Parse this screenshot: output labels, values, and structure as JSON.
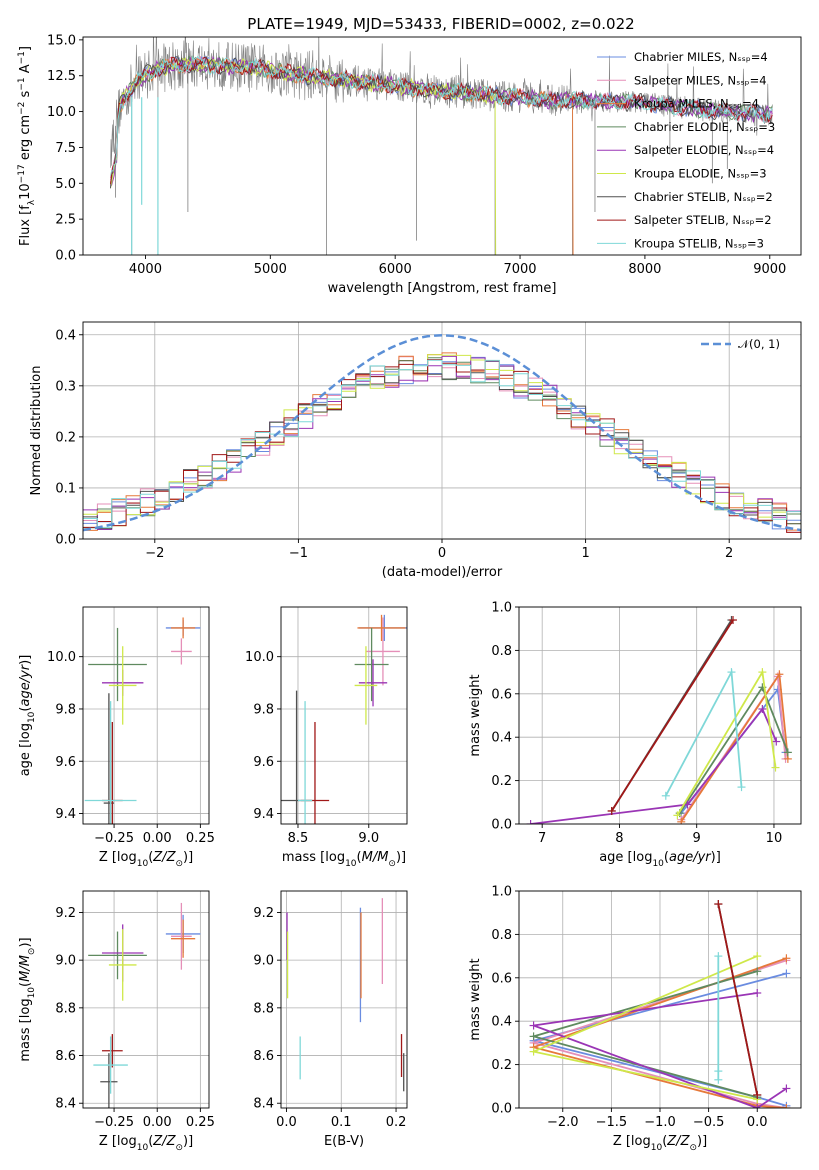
{
  "figure": {
    "title": "PLATE=1949, MJD=53433, FIBERID=0002, z=0.022"
  },
  "chart_data": [
    {
      "type": "line",
      "id": "spectrum",
      "xlabel": "wavelength [Angstrom, rest frame]",
      "ylabel": "Flux [f_λ10^-17 erg cm^-2 s^-1 A^-1]",
      "xlim": [
        3500,
        9250
      ],
      "ylim": [
        0,
        15.2
      ],
      "xticks": [
        4000,
        5000,
        6000,
        7000,
        8000,
        9000
      ],
      "yticks": [
        0.0,
        2.5,
        5.0,
        7.5,
        10.0,
        12.5,
        15.0
      ],
      "ytick_labels": [
        "0.0",
        "2.5",
        "5.0",
        "7.5",
        "10.0",
        "12.5",
        "15.0"
      ],
      "legend_position": "upper-right",
      "observed_color": "#808080",
      "continuum": {
        "x": [
          3720,
          3800,
          3900,
          4000,
          4100,
          4200,
          4400,
          4600,
          4800,
          5000,
          5200,
          5400,
          5600,
          5800,
          6000,
          6200,
          6400,
          6600,
          6800,
          7000,
          7200,
          7400,
          7600,
          7800,
          8000,
          8200,
          8400,
          8600,
          8800,
          9000
        ],
        "y": [
          7.5,
          10.5,
          11.8,
          12.6,
          13.0,
          13.2,
          13.3,
          13.2,
          13.1,
          12.9,
          12.6,
          12.4,
          12.2,
          12.0,
          11.8,
          11.6,
          11.4,
          11.3,
          11.1,
          11.0,
          10.8,
          10.8,
          10.7,
          10.7,
          10.6,
          10.4,
          10.2,
          10.0,
          9.9,
          9.8
        ]
      },
      "series": [
        {
          "name": "Chabrier MILES, N_SSP=4",
          "color": "#6a8ce0"
        },
        {
          "name": "Salpeter MILES, N_SSP=4",
          "color": "#e58fb8"
        },
        {
          "name": "Kroupa MILES, N_SSP=4",
          "color": "#e6793a"
        },
        {
          "name": "Chabrier ELODIE, N_SSP=3",
          "color": "#5f8a5f"
        },
        {
          "name": "Salpeter ELODIE, N_SSP=4",
          "color": "#9a35b5"
        },
        {
          "name": "Kroupa ELODIE, N_SSP=3",
          "color": "#cfe84a"
        },
        {
          "name": "Chabrier STELIB, N_SSP=2",
          "color": "#505050"
        },
        {
          "name": "Salpeter STELIB, N_SSP=2",
          "color": "#a01818"
        },
        {
          "name": "Kroupa STELIB, N_SSP=3",
          "color": "#7fd8d8"
        }
      ]
    },
    {
      "type": "histogram",
      "id": "residuals",
      "xlabel": "(data-model)/error",
      "ylabel": "Normed distribution",
      "xlim": [
        -2.5,
        2.5
      ],
      "ylim": [
        0,
        0.425
      ],
      "xticks": [
        -2,
        -1,
        0,
        1,
        2
      ],
      "xtick_labels": [
        "−2",
        "−1",
        "0",
        "1",
        "2"
      ],
      "yticks": [
        0.0,
        0.1,
        0.2,
        0.3,
        0.4
      ],
      "ytick_labels": [
        "0.0",
        "0.1",
        "0.2",
        "0.3",
        "0.4"
      ],
      "bin_width": 0.1,
      "legend": "𝒩(0, 1)",
      "curve_color": "#5b8fd6",
      "legend_position": "upper-right"
    },
    {
      "type": "scatter",
      "id": "age-vs-Z",
      "xlabel": "Z [log10(Z/Z⊙)]",
      "ylabel": "age [log10(age/yr)]",
      "xlim": [
        -0.43,
        0.3
      ],
      "ylim": [
        9.36,
        10.19
      ],
      "xticks": [
        -0.25,
        0.0,
        0.25
      ],
      "xtick_labels": [
        "−0.25",
        "0.00",
        "0.25"
      ],
      "yticks": [
        9.4,
        9.6,
        9.8,
        10.0
      ],
      "ytick_labels": [
        "9.4",
        "9.6",
        "9.8",
        "10.0"
      ],
      "points": [
        {
          "x": 0.15,
          "y": 10.11,
          "xerr": 0.1,
          "yerr": 0.03,
          "color": "#6a8ce0"
        },
        {
          "x": 0.14,
          "y": 10.02,
          "xerr": 0.06,
          "yerr": 0.05,
          "color": "#e58fb8"
        },
        {
          "x": 0.15,
          "y": 10.11,
          "xerr": 0.07,
          "yerr": 0.04,
          "color": "#e6793a"
        },
        {
          "x": -0.23,
          "y": 9.97,
          "xerr": 0.17,
          "yerr": 0.14,
          "color": "#5f8a5f"
        },
        {
          "x": -0.2,
          "y": 9.9,
          "xerr": 0.12,
          "yerr": 0.05,
          "color": "#9a35b5"
        },
        {
          "x": -0.2,
          "y": 9.89,
          "xerr": 0.08,
          "yerr": 0.15,
          "color": "#cfe84a"
        },
        {
          "x": -0.28,
          "y": 9.44,
          "xerr": 0.03,
          "yerr": 0.42,
          "color": "#505050"
        },
        {
          "x": -0.26,
          "y": 9.45,
          "xerr": 0.06,
          "yerr": 0.3,
          "color": "#a01818"
        },
        {
          "x": -0.27,
          "y": 9.45,
          "xerr": 0.15,
          "yerr": 0.38,
          "color": "#7fd8d8"
        }
      ]
    },
    {
      "type": "scatter",
      "id": "age-vs-mass",
      "xlabel": "mass [log10(M/M⊙)]",
      "ylabel": "",
      "xlim": [
        8.38,
        9.27
      ],
      "ylim": [
        9.36,
        10.19
      ],
      "xticks": [
        8.5,
        9.0
      ],
      "xtick_labels": [
        "8.5",
        "9.0"
      ],
      "yticks": [
        9.4,
        9.6,
        9.8,
        10.0
      ],
      "ytick_labels": [
        "9.4",
        "9.6",
        "9.8",
        "10.0"
      ],
      "points": [
        {
          "x": 9.11,
          "y": 10.11,
          "xerr": 0.18,
          "yerr": 0.05,
          "color": "#6a8ce0"
        },
        {
          "x": 9.1,
          "y": 10.02,
          "xerr": 0.12,
          "yerr": 0.13,
          "color": "#e58fb8"
        },
        {
          "x": 9.09,
          "y": 10.11,
          "xerr": 0.17,
          "yerr": 0.05,
          "color": "#e6793a"
        },
        {
          "x": 9.02,
          "y": 9.97,
          "xerr": 0.12,
          "yerr": 0.14,
          "color": "#5f8a5f"
        },
        {
          "x": 9.03,
          "y": 9.9,
          "xerr": 0.1,
          "yerr": 0.09,
          "color": "#9a35b5"
        },
        {
          "x": 8.98,
          "y": 9.89,
          "xerr": 0.08,
          "yerr": 0.15,
          "color": "#cfe84a"
        },
        {
          "x": 8.49,
          "y": 9.45,
          "xerr": 0.11,
          "yerr": 0.42,
          "color": "#505050"
        },
        {
          "x": 8.62,
          "y": 9.45,
          "xerr": 0.1,
          "yerr": 0.3,
          "color": "#a01818"
        },
        {
          "x": 8.55,
          "y": 9.45,
          "xerr": 0.05,
          "yerr": 0.38,
          "color": "#7fd8d8"
        }
      ]
    },
    {
      "type": "line",
      "id": "mass-weight-vs-age",
      "xlabel": "age [log10(age/yr)]",
      "ylabel": "mass weight",
      "xlim": [
        6.7,
        10.35
      ],
      "ylim": [
        0,
        1.0
      ],
      "xticks": [
        7,
        8,
        9,
        10
      ],
      "xtick_labels": [
        "7",
        "8",
        "9",
        "10"
      ],
      "yticks": [
        0.0,
        0.2,
        0.4,
        0.6,
        0.8,
        1.0
      ],
      "ytick_labels": [
        "0.0",
        "0.2",
        "0.4",
        "0.6",
        "0.8",
        "1.0"
      ],
      "series": [
        {
          "color": "#6a8ce0",
          "x": [
            8.8,
            10.05,
            10.15
          ],
          "y": [
            0.05,
            0.62,
            0.33
          ]
        },
        {
          "color": "#e58fb8",
          "x": [
            8.8,
            10.05,
            10.15
          ],
          "y": [
            0.02,
            0.68,
            0.3
          ]
        },
        {
          "color": "#e6793a",
          "x": [
            8.8,
            10.07,
            10.18
          ],
          "y": [
            0.01,
            0.69,
            0.3
          ]
        },
        {
          "color": "#5f8a5f",
          "x": [
            8.78,
            9.85,
            10.18
          ],
          "y": [
            0.05,
            0.63,
            0.33
          ]
        },
        {
          "color": "#9a35b5",
          "x": [
            6.85,
            8.88,
            9.85,
            10.03
          ],
          "y": [
            0.0,
            0.09,
            0.53,
            0.38
          ]
        },
        {
          "color": "#cfe84a",
          "x": [
            8.75,
            9.85,
            10.02
          ],
          "y": [
            0.04,
            0.7,
            0.26
          ]
        },
        {
          "color": "#505050",
          "x": [
            7.9,
            9.45
          ],
          "y": [
            0.06,
            0.94
          ]
        },
        {
          "color": "#a01818",
          "x": [
            7.9,
            9.47
          ],
          "y": [
            0.06,
            0.94
          ]
        },
        {
          "color": "#7fd8d8",
          "x": [
            8.6,
            9.45,
            9.58
          ],
          "y": [
            0.13,
            0.7,
            0.17
          ]
        }
      ]
    },
    {
      "type": "scatter",
      "id": "mass-vs-Z",
      "xlabel": "Z [log10(Z/Z⊙)]",
      "ylabel": "mass [log10(M/M⊙)]",
      "xlim": [
        -0.43,
        0.3
      ],
      "ylim": [
        8.38,
        9.29
      ],
      "xticks": [
        -0.25,
        0.0,
        0.25
      ],
      "xtick_labels": [
        "−0.25",
        "0.00",
        "0.25"
      ],
      "yticks": [
        8.4,
        8.6,
        8.8,
        9.0,
        9.2
      ],
      "ytick_labels": [
        "8.4",
        "8.6",
        "8.8",
        "9.0",
        "9.2"
      ],
      "points": [
        {
          "x": 0.15,
          "y": 9.11,
          "xerr": 0.1,
          "yerr": 0.08,
          "color": "#6a8ce0"
        },
        {
          "x": 0.14,
          "y": 9.1,
          "xerr": 0.06,
          "yerr": 0.14,
          "color": "#e58fb8"
        },
        {
          "x": 0.15,
          "y": 9.09,
          "xerr": 0.07,
          "yerr": 0.08,
          "color": "#e6793a"
        },
        {
          "x": -0.23,
          "y": 9.02,
          "xerr": 0.17,
          "yerr": 0.1,
          "color": "#5f8a5f"
        },
        {
          "x": -0.2,
          "y": 9.03,
          "xerr": 0.12,
          "yerr": 0.12,
          "color": "#9a35b5"
        },
        {
          "x": -0.2,
          "y": 8.98,
          "xerr": 0.08,
          "yerr": 0.15,
          "color": "#cfe84a"
        },
        {
          "x": -0.28,
          "y": 8.49,
          "xerr": 0.05,
          "yerr": 0.12,
          "color": "#505050"
        },
        {
          "x": -0.26,
          "y": 8.62,
          "xerr": 0.06,
          "yerr": 0.07,
          "color": "#a01818"
        },
        {
          "x": -0.27,
          "y": 8.56,
          "xerr": 0.1,
          "yerr": 0.12,
          "color": "#7fd8d8"
        }
      ]
    },
    {
      "type": "scatter",
      "id": "mass-vs-EBV",
      "xlabel": "E(B-V)",
      "ylabel": "",
      "xlim": [
        -0.01,
        0.22
      ],
      "ylim": [
        8.38,
        9.29
      ],
      "xticks": [
        0.0,
        0.1,
        0.2
      ],
      "xtick_labels": [
        "0.0",
        "0.1",
        "0.2"
      ],
      "yticks": [
        8.4,
        8.6,
        8.8,
        9.0,
        9.2
      ],
      "ytick_labels": [
        "8.4",
        "8.6",
        "8.8",
        "9.0",
        "9.2"
      ],
      "points": [
        {
          "x": 0.135,
          "y": 8.98,
          "xerr": 0,
          "yerr": 0.24,
          "color": "#6a8ce0"
        },
        {
          "x": 0.175,
          "y": 9.08,
          "xerr": 0,
          "yerr": 0.18,
          "color": "#e58fb8"
        },
        {
          "x": 0.136,
          "y": 9.02,
          "xerr": 0,
          "yerr": 0.18,
          "color": "#e6793a"
        },
        {
          "x": 0.001,
          "y": 9.1,
          "xerr": 0,
          "yerr": 0.1,
          "color": "#9a35b5"
        },
        {
          "x": 0.002,
          "y": 8.98,
          "xerr": 0,
          "yerr": 0.14,
          "color": "#cfe84a"
        },
        {
          "x": 0.214,
          "y": 8.53,
          "xerr": 0,
          "yerr": 0.08,
          "color": "#505050"
        },
        {
          "x": 0.21,
          "y": 8.6,
          "xerr": 0,
          "yerr": 0.09,
          "color": "#a01818"
        },
        {
          "x": 0.025,
          "y": 8.59,
          "xerr": 0,
          "yerr": 0.09,
          "color": "#7fd8d8"
        }
      ]
    },
    {
      "type": "line",
      "id": "mass-weight-vs-Z",
      "xlabel": "Z [log10(Z/Z⊙)]",
      "ylabel": "mass weight",
      "xlim": [
        -2.45,
        0.45
      ],
      "ylim": [
        0,
        1.0
      ],
      "xticks": [
        -2.0,
        -1.5,
        -1.0,
        -0.5,
        0.0
      ],
      "xtick_labels": [
        "−2.0",
        "−1.5",
        "−1.0",
        "−0.5",
        "0.0"
      ],
      "yticks": [
        0.0,
        0.2,
        0.4,
        0.6,
        0.8,
        1.0
      ],
      "ytick_labels": [
        "0.0",
        "0.2",
        "0.4",
        "0.6",
        "0.8",
        "1.0"
      ],
      "series": [
        {
          "color": "#6a8ce0",
          "x": [
            0.3,
            -2.3,
            0.0,
            0.3
          ],
          "y": [
            0.62,
            0.31,
            0.05,
            0.01
          ]
        },
        {
          "color": "#e58fb8",
          "x": [
            0.3,
            -2.3,
            0.0,
            0.3
          ],
          "y": [
            0.68,
            0.3,
            0.02,
            0.0
          ]
        },
        {
          "color": "#e6793a",
          "x": [
            0.3,
            -2.3,
            0.0,
            0.3
          ],
          "y": [
            0.69,
            0.28,
            0.01,
            0.0
          ]
        },
        {
          "color": "#5f8a5f",
          "x": [
            0.0,
            -2.3,
            0.0
          ],
          "y": [
            0.63,
            0.33,
            0.05
          ]
        },
        {
          "color": "#9a35b5",
          "x": [
            0.0,
            -2.3,
            0.0,
            0.3
          ],
          "y": [
            0.53,
            0.38,
            0.0,
            0.09
          ]
        },
        {
          "color": "#cfe84a",
          "x": [
            0.0,
            -2.3,
            0.0
          ],
          "y": [
            0.7,
            0.26,
            0.04
          ]
        },
        {
          "color": "#505050",
          "x": [
            -0.4,
            0.0
          ],
          "y": [
            0.94,
            0.06
          ]
        },
        {
          "color": "#a01818",
          "x": [
            -0.4,
            0.0
          ],
          "y": [
            0.94,
            0.06
          ]
        },
        {
          "color": "#7fd8d8",
          "x": [
            -0.4,
            -0.4,
            -0.4
          ],
          "y": [
            0.7,
            0.17,
            0.13
          ]
        }
      ]
    }
  ]
}
